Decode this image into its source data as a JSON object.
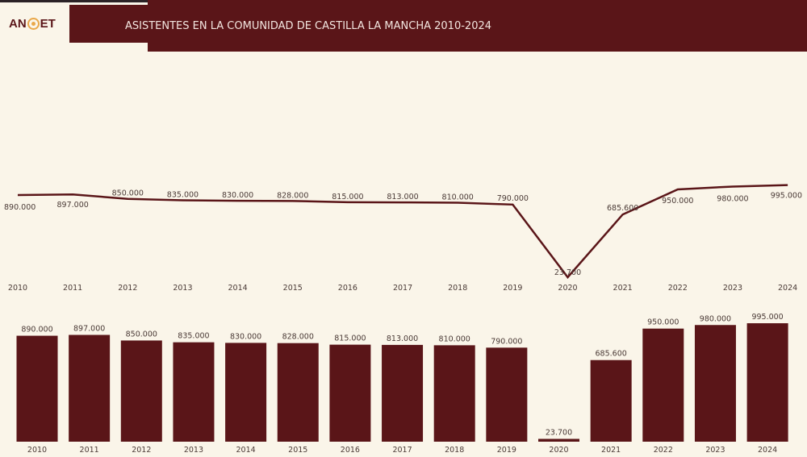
{
  "header": {
    "logo": "ANOET",
    "title": "ASISTENTES EN LA COMUNIDAD DE CASTILLA LA MANCHA 2010-2024"
  },
  "colors": {
    "bar": "#5a1518",
    "line": "#5a1518",
    "header": "#5a1518",
    "background": "#faf5e9",
    "logo_accent": "#e9a84a"
  },
  "chart_data": [
    {
      "type": "line",
      "categories": [
        "2010",
        "2011",
        "2012",
        "2013",
        "2014",
        "2015",
        "2016",
        "2017",
        "2018",
        "2019",
        "2020",
        "2021",
        "2022",
        "2023",
        "2024"
      ],
      "values": [
        890000,
        897000,
        850000,
        835000,
        830000,
        828000,
        815000,
        813000,
        810000,
        790000,
        23700,
        685600,
        950000,
        980000,
        995000
      ],
      "data_labels": [
        "890.000",
        "897.000",
        "850.000",
        "835.000",
        "830.000",
        "828.000",
        "815.000",
        "813.000",
        "810.000",
        "790.000",
        "23.700",
        "685.600",
        "950.000",
        "980.000",
        "995.000"
      ],
      "grid": false,
      "legend": "none"
    },
    {
      "type": "bar",
      "categories": [
        "2010",
        "2011",
        "2012",
        "2013",
        "2014",
        "2015",
        "2016",
        "2017",
        "2018",
        "2019",
        "2020",
        "2021",
        "2022",
        "2023",
        "2024"
      ],
      "values": [
        890000,
        897000,
        850000,
        835000,
        830000,
        828000,
        815000,
        813000,
        810000,
        790000,
        23700,
        685600,
        950000,
        980000,
        995000
      ],
      "data_labels": [
        "890.000",
        "897.000",
        "850.000",
        "835.000",
        "830.000",
        "828.000",
        "815.000",
        "813.000",
        "810.000",
        "790.000",
        "23.700",
        "685.600",
        "950.000",
        "980.000",
        "995.000"
      ],
      "grid": false,
      "legend": "none"
    }
  ]
}
